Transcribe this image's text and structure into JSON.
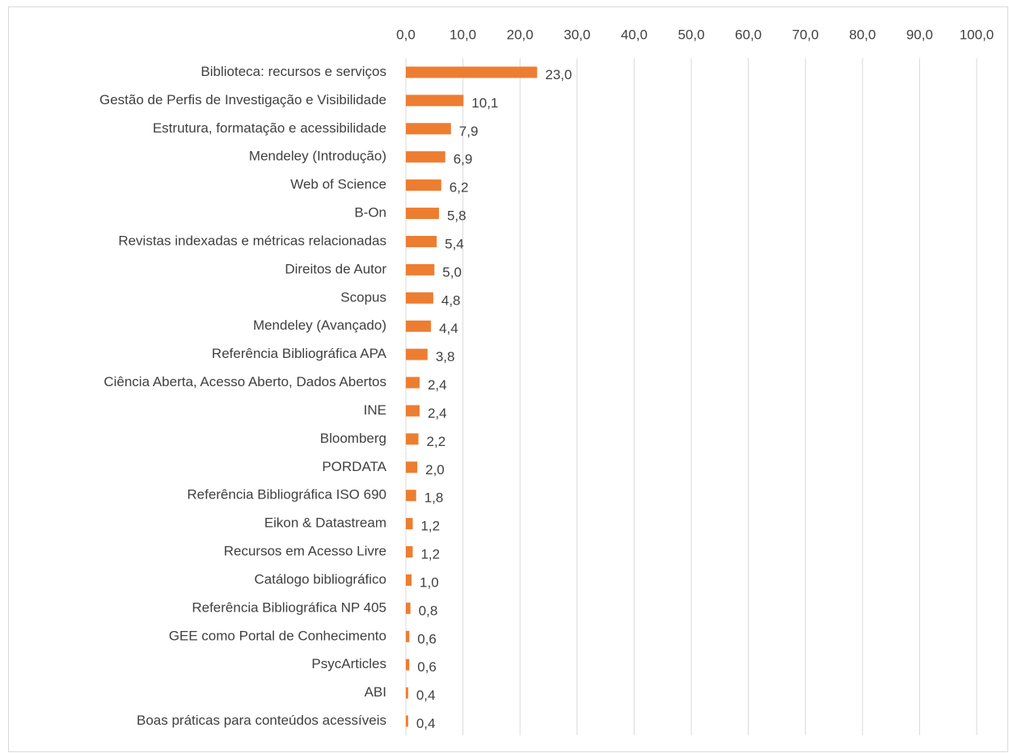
{
  "chart_data": {
    "type": "bar",
    "orientation": "horizontal",
    "color": "#ed7d31",
    "grid": true,
    "categories": [
      "Biblioteca: recursos e serviços",
      "Gestão de Perfis de Investigação e Visibilidade",
      "Estrutura, formatação e acessibilidade",
      "Mendeley (Introdução)",
      "Web of Science",
      "B-On",
      "Revistas indexadas e métricas relacionadas",
      "Direitos de Autor",
      "Scopus",
      "Mendeley (Avançado)",
      "Referência Bibliográfica APA",
      "Ciência Aberta, Acesso Aberto, Dados Abertos",
      "INE",
      "Bloomberg",
      "PORDATA",
      "Referência Bibliográfica ISO 690",
      "Eikon & Datastream",
      "Recursos em Acesso Livre",
      "Catálogo bibliográfico",
      "Referência Bibliográfica NP 405",
      "GEE como Portal de Conhecimento",
      "PsycArticles",
      "ABI",
      "Boas práticas para conteúdos acessíveis"
    ],
    "values": [
      23.0,
      10.1,
      7.9,
      6.9,
      6.2,
      5.8,
      5.4,
      5.0,
      4.8,
      4.4,
      3.8,
      2.4,
      2.4,
      2.2,
      2.0,
      1.8,
      1.2,
      1.2,
      1.0,
      0.8,
      0.6,
      0.6,
      0.4,
      0.4
    ],
    "value_labels": [
      "23,0",
      "10,1",
      "7,9",
      "6,9",
      "6,2",
      "5,8",
      "5,4",
      "5,0",
      "4,8",
      "4,4",
      "3,8",
      "2,4",
      "2,4",
      "2,2",
      "2,0",
      "1,8",
      "1,2",
      "1,2",
      "1,0",
      "0,8",
      "0,6",
      "0,6",
      "0,4",
      "0,4"
    ],
    "xlim": [
      0,
      100
    ],
    "xticks": [
      {
        "value": 0,
        "label": "0,0"
      },
      {
        "value": 10,
        "label": "10,0"
      },
      {
        "value": 20,
        "label": "20,0"
      },
      {
        "value": 30,
        "label": "30,0"
      },
      {
        "value": 40,
        "label": "40,0"
      },
      {
        "value": 50,
        "label": "50,0"
      },
      {
        "value": 60,
        "label": "60,0"
      },
      {
        "value": 70,
        "label": "70,0"
      },
      {
        "value": 80,
        "label": "80,0"
      },
      {
        "value": 90,
        "label": "90,0"
      },
      {
        "value": 100,
        "label": "100,0"
      }
    ]
  }
}
